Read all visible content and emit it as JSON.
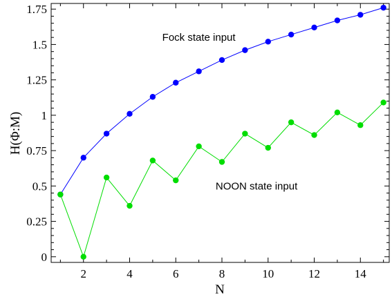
{
  "chart_data": {
    "type": "line",
    "xlabel": "N",
    "ylabel": "H(Φ:M)",
    "xlim": [
      0.6,
      15.25
    ],
    "ylim": [
      -0.04,
      1.79
    ],
    "x_ticks": [
      2,
      4,
      6,
      8,
      10,
      12,
      14
    ],
    "x_tick_labels": [
      "2",
      "4",
      "6",
      "8",
      "10",
      "12",
      "14"
    ],
    "y_ticks": [
      0,
      0.25,
      0.5,
      0.75,
      1,
      1.25,
      1.5,
      1.75
    ],
    "y_tick_labels": [
      "0",
      "0.25",
      "0.5",
      "0.75",
      "1",
      "1.25",
      "1.5",
      "1.75"
    ],
    "grid": false,
    "x": [
      1,
      2,
      3,
      4,
      5,
      6,
      7,
      8,
      9,
      10,
      11,
      12,
      13,
      14,
      15
    ],
    "series": [
      {
        "color": "#0000ff",
        "values": [
          0.44,
          0.7,
          0.87,
          1.01,
          1.13,
          1.23,
          1.31,
          1.39,
          1.46,
          1.52,
          1.57,
          1.62,
          1.67,
          1.71,
          1.76
        ]
      },
      {
        "color": "#00dd00",
        "values": [
          0.44,
          0.0,
          0.56,
          0.36,
          0.68,
          0.54,
          0.78,
          0.67,
          0.87,
          0.77,
          0.95,
          0.86,
          1.02,
          0.93,
          1.09
        ]
      }
    ],
    "annotations": [
      {
        "text": "Fock state input",
        "x": 7.0,
        "y": 1.55
      },
      {
        "text": "NOON state input",
        "x": 9.5,
        "y": 0.5
      }
    ]
  }
}
